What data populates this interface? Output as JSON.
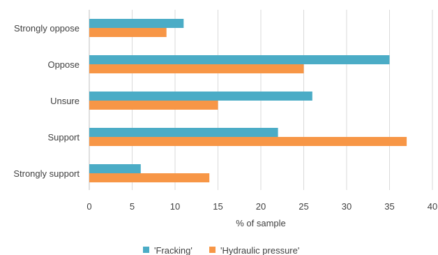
{
  "chart_data": {
    "type": "bar",
    "orientation": "horizontal",
    "categories": [
      "Strongly oppose",
      "Oppose",
      "Unsure",
      "Support",
      "Strongly support"
    ],
    "series": [
      {
        "name": "'Fracking'",
        "color": "#4bacc6",
        "values": [
          11,
          35,
          26,
          22,
          6
        ]
      },
      {
        "name": "'Hydraulic pressure'",
        "color": "#f79646",
        "values": [
          9,
          25,
          15,
          37,
          14
        ]
      }
    ],
    "xlabel": "% of sample",
    "ylabel": "",
    "xlim": [
      0,
      40
    ],
    "xticks": [
      0,
      5,
      10,
      15,
      20,
      25,
      30,
      35,
      40
    ],
    "grid": true,
    "legend_position": "bottom"
  }
}
